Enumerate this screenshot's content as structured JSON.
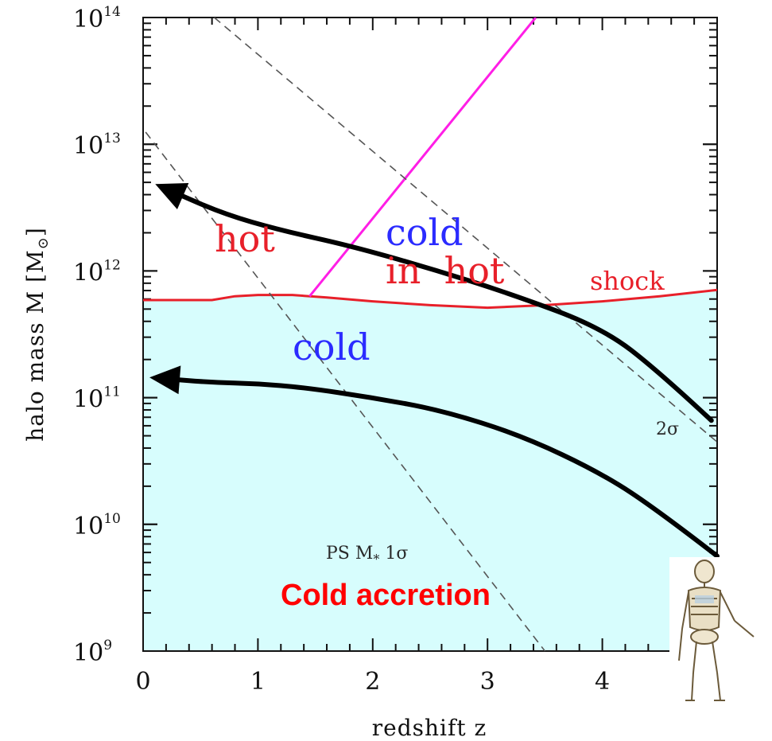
{
  "chart_data": {
    "type": "line",
    "xlabel": "redshift z",
    "ylabel_main": "halo mass M [M",
    "ylabel_symbol": "⊙",
    "ylabel_end": "]",
    "xlim": [
      0,
      5
    ],
    "ylim_log10": [
      9,
      14
    ],
    "y_scale": "log",
    "x_ticks": [
      0,
      1,
      2,
      3,
      4
    ],
    "y_ticks": [
      {
        "base": "10",
        "exp": "9"
      },
      {
        "base": "10",
        "exp": "10"
      },
      {
        "base": "10",
        "exp": "11"
      },
      {
        "base": "10",
        "exp": "12"
      },
      {
        "base": "10",
        "exp": "13"
      },
      {
        "base": "10",
        "exp": "14"
      }
    ],
    "grid": false,
    "regions": {
      "hot": "hot",
      "cold_upper": "cold",
      "in_hot": "in  hot",
      "cold_lower": "cold",
      "shock": "shock"
    },
    "series": [
      {
        "name": "shock",
        "style": "solid",
        "color": "#e8202a",
        "x": [
          0,
          0.3,
          0.6,
          0.8,
          1.0,
          1.3,
          1.6,
          2.0,
          2.5,
          3.0,
          3.5,
          4.0,
          4.5,
          5.0
        ],
        "y_log10": [
          11.77,
          11.77,
          11.77,
          11.8,
          11.81,
          11.81,
          11.79,
          11.76,
          11.73,
          11.71,
          11.73,
          11.76,
          11.8,
          11.85
        ]
      },
      {
        "name": "",
        "style": "solid",
        "color": "#ff1ee6",
        "x": [
          1.45,
          3.42
        ],
        "y_log10": [
          11.8,
          14.0
        ]
      },
      {
        "name": "PS M* 1σ",
        "label_text": "PS M",
        "label_sub": "*",
        "label_end": " 1σ",
        "style": "dashed",
        "color": "#555555",
        "x": [
          -0.05,
          3.5
        ],
        "y_log10": [
          13.18,
          9.0
        ]
      },
      {
        "name": "2σ",
        "label_text": "2σ",
        "style": "dashed",
        "color": "#555555",
        "x": [
          0.62,
          5.0
        ],
        "y_log10": [
          14.0,
          10.65
        ]
      }
    ],
    "arrows": [
      {
        "color": "#000000",
        "x": [
          4.95,
          4.5,
          4.0,
          3.2,
          2.5,
          1.8,
          1.2,
          0.7,
          0.22
        ],
        "y_log10": [
          10.82,
          11.2,
          11.55,
          11.82,
          12.02,
          12.2,
          12.32,
          12.45,
          12.64
        ]
      },
      {
        "color": "#000000",
        "x": [
          5.0,
          4.5,
          4.0,
          3.3,
          2.6,
          2.0,
          1.4,
          1.0,
          0.6,
          0.18
        ],
        "y_log10": [
          9.75,
          10.1,
          10.4,
          10.7,
          10.9,
          11.0,
          11.08,
          11.11,
          11.12,
          11.15
        ]
      }
    ],
    "colors": {
      "cold_region": "#d7fdfd",
      "hot_text": "#e8202a",
      "cold_text": "#2b2bff",
      "caption": "#ff0000"
    },
    "caption": "Cold accretion"
  },
  "decoration": {
    "image_name": "skeleton-figure"
  }
}
